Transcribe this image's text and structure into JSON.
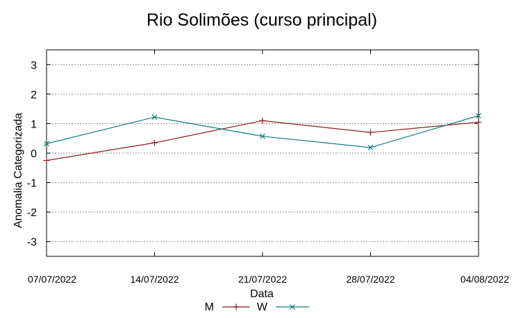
{
  "chart_data": {
    "type": "line",
    "title": "Rio Solimões (curso principal)",
    "xlabel": "Data",
    "ylabel": "Anomalia Categorizada",
    "categories": [
      "07/07/2022",
      "14/07/2022",
      "21/07/2022",
      "28/07/2022",
      "04/08/2022"
    ],
    "ylim": [
      -3.5,
      3.5
    ],
    "yticks": [
      3,
      2,
      1,
      0,
      -1,
      -2,
      -3
    ],
    "ytick_labels": [
      "3",
      "2",
      "1",
      "0",
      "-1",
      "-2",
      "-3"
    ],
    "grid": true,
    "legend_position": "bottom",
    "series": [
      {
        "name": "M",
        "color": "#8b1a1a",
        "marker": "plus",
        "values": [
          -0.25,
          0.35,
          1.1,
          0.7,
          1.05
        ]
      },
      {
        "name": "W",
        "color": "#0e7a7a",
        "marker": "cross",
        "values": [
          0.32,
          1.22,
          0.57,
          0.19,
          1.27
        ]
      }
    ]
  }
}
